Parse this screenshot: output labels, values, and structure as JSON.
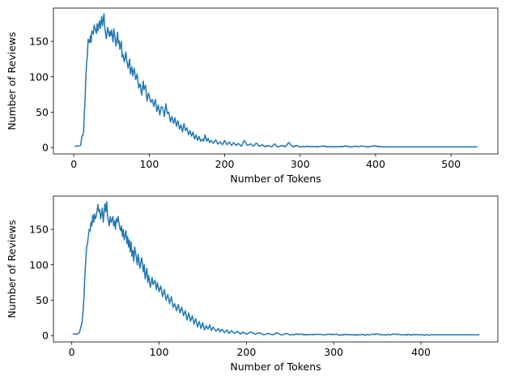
{
  "chart_data": [
    {
      "type": "line",
      "xlabel": "Number of Tokens",
      "ylabel": "Number of Reviews",
      "xlim": [
        -27,
        562
      ],
      "ylim": [
        -9,
        197
      ],
      "xticks": [
        0,
        100,
        200,
        300,
        400,
        500
      ],
      "yticks": [
        0,
        50,
        100,
        150
      ],
      "grid": false,
      "color": "#1f77b4",
      "x_max": 535,
      "anchors": [
        [
          1,
          2
        ],
        [
          5,
          2
        ],
        [
          9,
          3
        ],
        [
          10,
          10
        ],
        [
          11,
          17
        ],
        [
          12,
          17
        ],
        [
          13,
          23
        ],
        [
          14,
          49
        ],
        [
          15,
          69
        ],
        [
          16,
          100
        ],
        [
          17,
          120
        ],
        [
          18,
          130
        ],
        [
          19,
          153
        ],
        [
          20,
          150
        ],
        [
          21,
          148
        ],
        [
          22,
          158
        ],
        [
          23,
          149
        ],
        [
          24,
          165
        ],
        [
          26,
          160
        ],
        [
          27,
          173
        ],
        [
          28,
          169
        ],
        [
          30,
          161
        ],
        [
          31,
          175
        ],
        [
          32,
          165
        ],
        [
          34,
          179
        ],
        [
          35,
          168
        ],
        [
          37,
          185
        ],
        [
          38,
          172
        ],
        [
          40,
          189
        ],
        [
          41,
          170
        ],
        [
          43,
          154
        ],
        [
          45,
          170
        ],
        [
          47,
          157
        ],
        [
          48,
          164
        ],
        [
          49,
          158
        ],
        [
          50,
          166
        ],
        [
          52,
          149
        ],
        [
          53,
          168
        ],
        [
          54,
          160
        ],
        [
          56,
          143
        ],
        [
          58,
          163
        ],
        [
          59,
          147
        ],
        [
          60,
          151
        ],
        [
          61,
          139
        ],
        [
          63,
          150
        ],
        [
          64,
          128
        ],
        [
          65,
          132
        ],
        [
          67,
          121
        ],
        [
          69,
          135
        ],
        [
          70,
          124
        ],
        [
          72,
          112
        ],
        [
          74,
          125
        ],
        [
          75,
          104
        ],
        [
          77,
          114
        ],
        [
          78,
          101
        ],
        [
          80,
          112
        ],
        [
          82,
          96
        ],
        [
          84,
          104
        ],
        [
          86,
          84
        ],
        [
          88,
          90
        ],
        [
          90,
          74
        ],
        [
          92,
          94
        ],
        [
          93,
          82
        ],
        [
          95,
          88
        ],
        [
          97,
          66
        ],
        [
          99,
          77
        ],
        [
          100,
          73
        ],
        [
          102,
          64
        ],
        [
          104,
          68
        ],
        [
          106,
          58
        ],
        [
          108,
          68
        ],
        [
          110,
          51
        ],
        [
          112,
          60
        ],
        [
          114,
          46
        ],
        [
          116,
          58
        ],
        [
          118,
          56
        ],
        [
          120,
          44
        ],
        [
          122,
          62
        ],
        [
          124,
          48
        ],
        [
          126,
          50
        ],
        [
          128,
          36
        ],
        [
          130,
          44
        ],
        [
          132,
          34
        ],
        [
          134,
          42
        ],
        [
          136,
          30
        ],
        [
          138,
          38
        ],
        [
          140,
          26
        ],
        [
          142,
          32
        ],
        [
          144,
          22
        ],
        [
          146,
          34
        ],
        [
          148,
          24
        ],
        [
          150,
          28
        ],
        [
          152,
          18
        ],
        [
          154,
          24
        ],
        [
          156,
          16
        ],
        [
          158,
          22
        ],
        [
          160,
          12
        ],
        [
          162,
          18
        ],
        [
          164,
          10
        ],
        [
          166,
          16
        ],
        [
          168,
          9
        ],
        [
          170,
          12
        ],
        [
          172,
          9
        ],
        [
          174,
          18
        ],
        [
          176,
          9
        ],
        [
          178,
          13
        ],
        [
          180,
          7
        ],
        [
          182,
          10
        ],
        [
          185,
          6
        ],
        [
          188,
          11
        ],
        [
          191,
          5
        ],
        [
          194,
          8
        ],
        [
          197,
          4
        ],
        [
          200,
          10
        ],
        [
          203,
          4
        ],
        [
          206,
          8
        ],
        [
          209,
          3
        ],
        [
          212,
          7
        ],
        [
          215,
          3
        ],
        [
          218,
          6
        ],
        [
          222,
          2
        ],
        [
          226,
          10
        ],
        [
          230,
          3
        ],
        [
          234,
          5
        ],
        [
          238,
          2
        ],
        [
          242,
          6
        ],
        [
          246,
          2
        ],
        [
          250,
          4
        ],
        [
          254,
          1
        ],
        [
          258,
          3
        ],
        [
          262,
          1
        ],
        [
          266,
          5
        ],
        [
          270,
          1
        ],
        [
          275,
          3
        ],
        [
          280,
          1
        ],
        [
          285,
          7
        ],
        [
          290,
          1
        ],
        [
          295,
          3
        ],
        [
          300,
          1
        ],
        [
          310,
          2
        ],
        [
          320,
          1
        ],
        [
          330,
          2
        ],
        [
          340,
          1
        ],
        [
          350,
          1
        ],
        [
          360,
          2
        ],
        [
          370,
          1
        ],
        [
          380,
          2
        ],
        [
          390,
          1
        ],
        [
          400,
          3
        ],
        [
          403,
          1
        ],
        [
          535,
          1
        ]
      ]
    },
    {
      "type": "line",
      "xlabel": "Number of Tokens",
      "ylabel": "Number of Reviews",
      "xlim": [
        -21,
        488
      ],
      "ylim": [
        -9,
        197
      ],
      "xticks": [
        0,
        100,
        200,
        300,
        400
      ],
      "yticks": [
        0,
        50,
        100,
        150
      ],
      "grid": false,
      "color": "#1f77b4",
      "x_max": 467,
      "anchors": [
        [
          1,
          2
        ],
        [
          5,
          2
        ],
        [
          8,
          3
        ],
        [
          9,
          5
        ],
        [
          10,
          10
        ],
        [
          11,
          15
        ],
        [
          12,
          20
        ],
        [
          13,
          35
        ],
        [
          14,
          55
        ],
        [
          15,
          85
        ],
        [
          16,
          105
        ],
        [
          17,
          125
        ],
        [
          18,
          130
        ],
        [
          19,
          140
        ],
        [
          20,
          150
        ],
        [
          21,
          148
        ],
        [
          22,
          160
        ],
        [
          23,
          155
        ],
        [
          24,
          170
        ],
        [
          25,
          160
        ],
        [
          26,
          172
        ],
        [
          27,
          165
        ],
        [
          28,
          168
        ],
        [
          30,
          185
        ],
        [
          31,
          175
        ],
        [
          32,
          178
        ],
        [
          33,
          165
        ],
        [
          34,
          172
        ],
        [
          35,
          180
        ],
        [
          36,
          160
        ],
        [
          38,
          186
        ],
        [
          39,
          175
        ],
        [
          40,
          189
        ],
        [
          41,
          168
        ],
        [
          43,
          155
        ],
        [
          44,
          168
        ],
        [
          45,
          160
        ],
        [
          47,
          168
        ],
        [
          48,
          155
        ],
        [
          49,
          162
        ],
        [
          50,
          150
        ],
        [
          51,
          165
        ],
        [
          52,
          160
        ],
        [
          53,
          168
        ],
        [
          55,
          152
        ],
        [
          56,
          148
        ],
        [
          57,
          155
        ],
        [
          58,
          140
        ],
        [
          59,
          150
        ],
        [
          60,
          135
        ],
        [
          62,
          148
        ],
        [
          63,
          130
        ],
        [
          64,
          140
        ],
        [
          65,
          125
        ],
        [
          66,
          135
        ],
        [
          67,
          118
        ],
        [
          68,
          132
        ],
        [
          69,
          112
        ],
        [
          70,
          120
        ],
        [
          71,
          105
        ],
        [
          72,
          125
        ],
        [
          74,
          110
        ],
        [
          75,
          100
        ],
        [
          76,
          115
        ],
        [
          77,
          105
        ],
        [
          78,
          95
        ],
        [
          80,
          110
        ],
        [
          82,
          90
        ],
        [
          83,
          100
        ],
        [
          84,
          80
        ],
        [
          86,
          95
        ],
        [
          87,
          75
        ],
        [
          88,
          85
        ],
        [
          90,
          68
        ],
        [
          92,
          82
        ],
        [
          93,
          72
        ],
        [
          95,
          78
        ],
        [
          97,
          65
        ],
        [
          98,
          75
        ],
        [
          100,
          62
        ],
        [
          102,
          70
        ],
        [
          104,
          55
        ],
        [
          106,
          65
        ],
        [
          108,
          50
        ],
        [
          110,
          58
        ],
        [
          112,
          45
        ],
        [
          114,
          55
        ],
        [
          116,
          40
        ],
        [
          118,
          45
        ],
        [
          120,
          35
        ],
        [
          122,
          44
        ],
        [
          124,
          32
        ],
        [
          126,
          40
        ],
        [
          128,
          28
        ],
        [
          130,
          35
        ],
        [
          132,
          22
        ],
        [
          134,
          32
        ],
        [
          136,
          20
        ],
        [
          138,
          28
        ],
        [
          140,
          16
        ],
        [
          142,
          24
        ],
        [
          144,
          12
        ],
        [
          146,
          20
        ],
        [
          148,
          10
        ],
        [
          150,
          18
        ],
        [
          152,
          8
        ],
        [
          154,
          14
        ],
        [
          156,
          9
        ],
        [
          158,
          15
        ],
        [
          160,
          7
        ],
        [
          162,
          12
        ],
        [
          165,
          6
        ],
        [
          168,
          10
        ],
        [
          170,
          5
        ],
        [
          172,
          9
        ],
        [
          175,
          4
        ],
        [
          178,
          8
        ],
        [
          180,
          3
        ],
        [
          183,
          7
        ],
        [
          186,
          3
        ],
        [
          190,
          6
        ],
        [
          193,
          2
        ],
        [
          196,
          5
        ],
        [
          200,
          2
        ],
        [
          205,
          5
        ],
        [
          210,
          2
        ],
        [
          215,
          4
        ],
        [
          220,
          1
        ],
        [
          225,
          3
        ],
        [
          230,
          1
        ],
        [
          235,
          4
        ],
        [
          240,
          1
        ],
        [
          245,
          3
        ],
        [
          250,
          1
        ],
        [
          260,
          2
        ],
        [
          270,
          1
        ],
        [
          280,
          2
        ],
        [
          290,
          1
        ],
        [
          300,
          2
        ],
        [
          305,
          1
        ],
        [
          340,
          1
        ],
        [
          350,
          2
        ],
        [
          360,
          1
        ],
        [
          370,
          2
        ],
        [
          380,
          1
        ],
        [
          467,
          1
        ]
      ]
    }
  ]
}
